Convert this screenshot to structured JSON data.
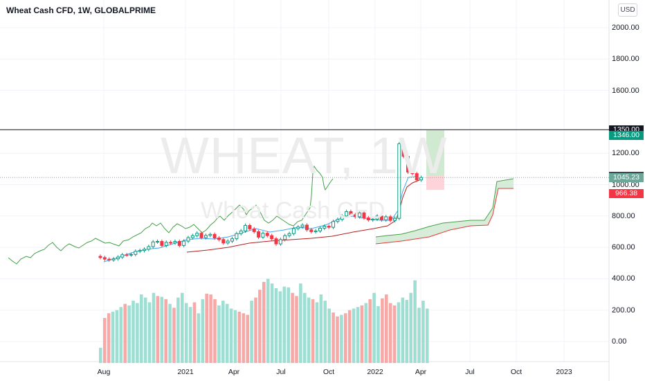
{
  "header": {
    "title": "Wheat Cash CFD, 1W, GLOBALPRIME",
    "currency": "USD"
  },
  "watermark": {
    "symbol": "WHEAT, 1W",
    "description": "Wheat Cash CFD"
  },
  "price_tags": [
    {
      "label": "1350.00",
      "color": "#131722"
    },
    {
      "label": "1346.00",
      "color": "#089981"
    },
    {
      "label": "1054.90",
      "color": "#434651"
    },
    {
      "label": "1045.23",
      "color": "#6aa99a"
    },
    {
      "label": "966.38",
      "color": "#f23645"
    }
  ],
  "chart_data": [
    {
      "type": "candlestick",
      "title": "Wheat Cash CFD, 1W, GLOBALPRIME",
      "y_tick_labels": [
        "2000.00",
        "1800.00",
        "1600.00",
        "1200.00",
        "1000.00",
        "800.00",
        "600.00",
        "400.00",
        "200.00",
        "0.00"
      ],
      "x_tick_labels": [
        "Aug",
        "2021",
        "Apr",
        "Jul",
        "Oct",
        "2022",
        "Apr",
        "Jul",
        "Oct",
        "2023"
      ],
      "ylim": [
        -170,
        2130
      ],
      "grid": true,
      "horizontal_line": 1350,
      "colors": {
        "up": "#089981",
        "down": "#f23645",
        "ma_fast": "#2962ff",
        "ma_slow": "#b71c1c",
        "lagging_span": "#43a047",
        "cloud": "#a5d6a7"
      },
      "weekly_close": [
        535,
        525,
        520,
        527,
        538,
        553,
        552,
        555,
        575,
        580,
        588,
        605,
        635,
        638,
        612,
        632,
        628,
        638,
        612,
        640,
        662,
        675,
        690,
        662,
        676,
        683,
        660,
        650,
        628,
        640,
        655,
        688,
        705,
        740,
        718,
        700,
        665,
        690,
        675,
        655,
        622,
        650,
        675,
        688,
        720,
        730,
        742,
        712,
        700,
        705,
        722,
        735,
        728,
        765,
        778,
        800,
        828,
        808,
        795,
        820,
        788,
        775,
        780,
        800,
        775,
        795,
        772,
        785,
        1260,
        1180,
        1080,
        1070,
        1030,
        1045
      ],
      "lagging_span": [
        715,
        705,
        670,
        650,
        665,
        690,
        680,
        670,
        690,
        710,
        735,
        720,
        710,
        690,
        700,
        700,
        720,
        725,
        760,
        745,
        760,
        790,
        770,
        735,
        730,
        735,
        745,
        740,
        750,
        780,
        820,
        860,
        880,
        870,
        900,
        880,
        860,
        810,
        820,
        840,
        830,
        800,
        820,
        840,
        860,
        830,
        850,
        870,
        910,
        880,
        870,
        880,
        890,
        910,
        940,
        960,
        960,
        970,
        980,
        970,
        1050,
        1060,
        1080,
        1120,
        1160,
        1170,
        1150,
        1130,
        1200,
        1170,
        1180,
        1190,
        1180,
        1230,
        1220,
        1250,
        1220
      ],
      "volume": [
        -40,
        150,
        180,
        190,
        200,
        220,
        240,
        230,
        260,
        245,
        300,
        280,
        250,
        310,
        290,
        285,
        270,
        240,
        215,
        280,
        310,
        245,
        220,
        250,
        180,
        270,
        305,
        300,
        270,
        230,
        260,
        240,
        210,
        200,
        190,
        180,
        170,
        260,
        280,
        330,
        380,
        400,
        370,
        340,
        320,
        350,
        345,
        310,
        290,
        370,
        310,
        280,
        270,
        250,
        300,
        260,
        210,
        185,
        160,
        170,
        180,
        200,
        210,
        220,
        230,
        245,
        270,
        310,
        225,
        275,
        300,
        245,
        230,
        250,
        280,
        265,
        310,
        390,
        215,
        260,
        210
      ]
    }
  ]
}
